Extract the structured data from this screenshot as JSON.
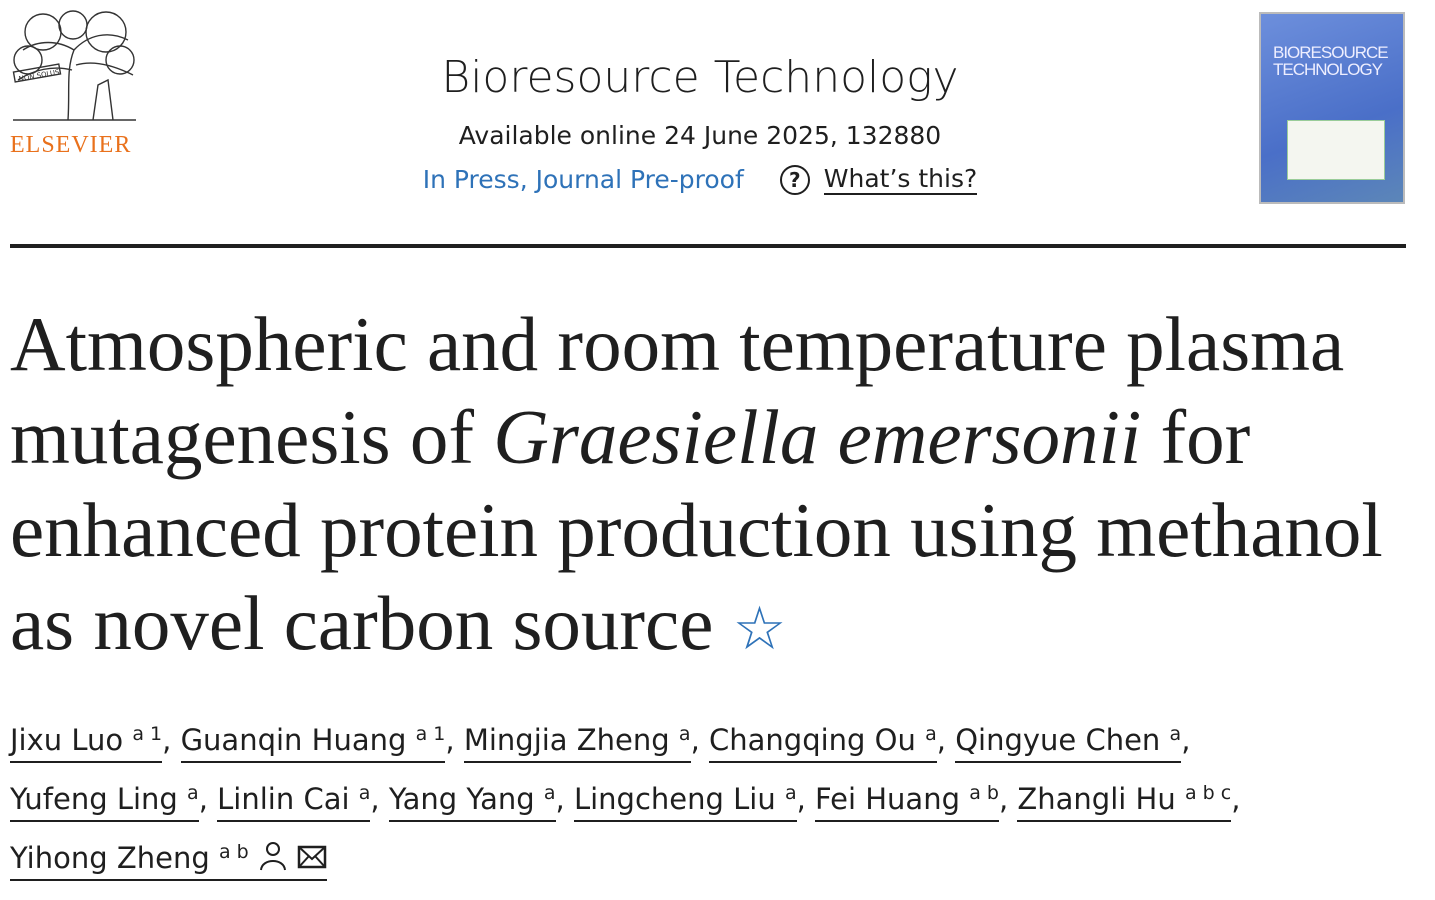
{
  "publisher": {
    "name": "ELSEVIER",
    "emblem_text": "NON SOLUS",
    "brand_color": "#e9711c"
  },
  "journal": {
    "title": "Bioresource Technology",
    "available": "Available online 24 June 2025, 132880",
    "status": "In Press, Journal Pre-proof",
    "help_label": "What’s this?",
    "help_icon": "question-circle-icon",
    "cover_title": "BIORESOURCE TECHNOLOGY"
  },
  "article": {
    "title_pre": "Atmospheric and room temperature plasma mutagenesis of ",
    "title_italic": "Graesiella emersonii",
    "title_post": " for enhanced protein production using methanol as novel carbon source",
    "star_icon": "☆",
    "authors": [
      {
        "name": "Jixu Luo",
        "sup": "a 1"
      },
      {
        "name": "Guanqin Huang",
        "sup": "a 1"
      },
      {
        "name": "Mingjia Zheng",
        "sup": "a"
      },
      {
        "name": "Changqing Ou",
        "sup": "a"
      },
      {
        "name": "Qingyue Chen",
        "sup": "a"
      },
      {
        "name": "Yufeng Ling",
        "sup": "a"
      },
      {
        "name": "Linlin Cai",
        "sup": "a"
      },
      {
        "name": "Yang Yang",
        "sup": "a"
      },
      {
        "name": "Lingcheng Liu",
        "sup": "a"
      },
      {
        "name": "Fei Huang",
        "sup": "a b"
      },
      {
        "name": "Zhangli Hu",
        "sup": "a b c"
      },
      {
        "name": "Yihong Zheng",
        "sup": "a b",
        "icons": [
          "person-icon",
          "envelope-icon"
        ]
      }
    ]
  },
  "colors": {
    "link": "#2e72b8",
    "text": "#1f1f1f"
  }
}
